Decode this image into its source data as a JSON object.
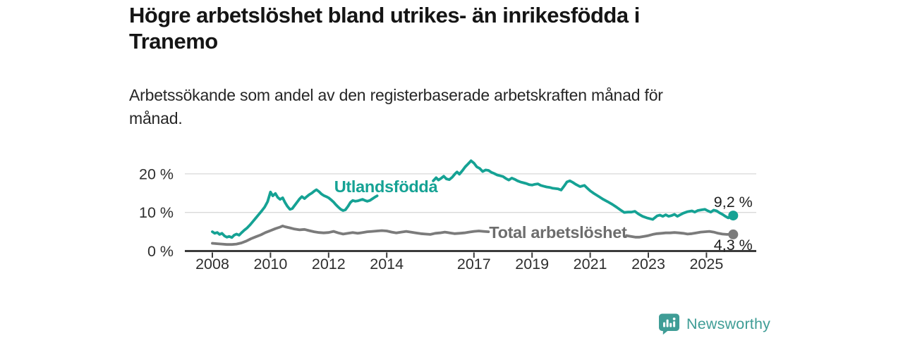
{
  "branding": {
    "name": "Newsworthy",
    "teal": "#3f9d96"
  },
  "colors": {
    "background": "#ffffff",
    "title_text": "#151515",
    "subtitle_text": "#262626",
    "grid": "#d9d9d9",
    "axis": "#3b3b3b",
    "tick_text": "#2e2e2e",
    "end_label_text": "#1f1f1f",
    "series_foreign": "#15a294",
    "series_total": "#7b7b7b"
  },
  "chart_data": {
    "type": "line",
    "title": "Högre arbetslöshet bland utrikes- än inrikesfödda i Tranemo",
    "subtitle": "Arbetssökande som andel av den registerbaserade arbetskraften månad för månad.",
    "unit": "%",
    "grid": "horizontal",
    "legend_position": "inline-labels",
    "x_range": [
      2007.05,
      2026.3
    ],
    "y_range": [
      0,
      25
    ],
    "x_ticks": [
      {
        "v": 2008,
        "label": "2008"
      },
      {
        "v": 2010,
        "label": "2010"
      },
      {
        "v": 2012,
        "label": "2012"
      },
      {
        "v": 2014,
        "label": "2014"
      },
      {
        "v": 2017,
        "label": "2017"
      },
      {
        "v": 2019,
        "label": "2019"
      },
      {
        "v": 2021,
        "label": "2021"
      },
      {
        "v": 2023,
        "label": "2023"
      },
      {
        "v": 2025,
        "label": "2025"
      }
    ],
    "y_ticks": [
      {
        "v": 0,
        "label": "0 %"
      },
      {
        "v": 10,
        "label": "10 %"
      },
      {
        "v": 20,
        "label": "20 %"
      }
    ],
    "series": [
      {
        "id": "utlandsfodda",
        "name": "Utlandsfödda",
        "color": "#15a294",
        "label_color": "#15a294",
        "label_at": [
          2013.97,
          16.7
        ],
        "end_label": "9,2 %",
        "end_label_side": "above",
        "points": [
          [
            2008.0,
            5.0
          ],
          [
            2008.08,
            4.6
          ],
          [
            2008.17,
            4.8
          ],
          [
            2008.25,
            4.3
          ],
          [
            2008.33,
            4.6
          ],
          [
            2008.42,
            3.9
          ],
          [
            2008.5,
            3.6
          ],
          [
            2008.58,
            3.8
          ],
          [
            2008.67,
            3.5
          ],
          [
            2008.75,
            4.1
          ],
          [
            2008.83,
            4.4
          ],
          [
            2008.92,
            4.1
          ],
          [
            2009.0,
            4.7
          ],
          [
            2009.1,
            5.4
          ],
          [
            2009.2,
            6.0
          ],
          [
            2009.3,
            6.8
          ],
          [
            2009.4,
            7.7
          ],
          [
            2009.5,
            8.6
          ],
          [
            2009.6,
            9.5
          ],
          [
            2009.7,
            10.4
          ],
          [
            2009.8,
            11.4
          ],
          [
            2009.9,
            12.8
          ],
          [
            2010.0,
            15.3
          ],
          [
            2010.08,
            14.3
          ],
          [
            2010.17,
            14.9
          ],
          [
            2010.25,
            13.9
          ],
          [
            2010.33,
            13.4
          ],
          [
            2010.42,
            13.8
          ],
          [
            2010.5,
            12.6
          ],
          [
            2010.58,
            11.6
          ],
          [
            2010.67,
            10.8
          ],
          [
            2010.75,
            11.0
          ],
          [
            2010.83,
            11.8
          ],
          [
            2010.92,
            12.7
          ],
          [
            2011.0,
            13.5
          ],
          [
            2011.08,
            14.1
          ],
          [
            2011.17,
            13.6
          ],
          [
            2011.25,
            14.1
          ],
          [
            2011.33,
            14.6
          ],
          [
            2011.42,
            15.0
          ],
          [
            2011.5,
            15.5
          ],
          [
            2011.58,
            15.9
          ],
          [
            2011.67,
            15.4
          ],
          [
            2011.75,
            14.8
          ],
          [
            2011.83,
            14.4
          ],
          [
            2011.92,
            14.1
          ],
          [
            2012.0,
            13.8
          ],
          [
            2012.08,
            13.3
          ],
          [
            2012.17,
            12.7
          ],
          [
            2012.25,
            12.0
          ],
          [
            2012.33,
            11.4
          ],
          [
            2012.42,
            10.8
          ],
          [
            2012.5,
            10.5
          ],
          [
            2012.58,
            10.7
          ],
          [
            2012.67,
            11.6
          ],
          [
            2012.75,
            12.6
          ],
          [
            2012.83,
            13.1
          ],
          [
            2012.92,
            12.9
          ],
          [
            2013.0,
            13.0
          ],
          [
            2013.08,
            13.2
          ],
          [
            2013.17,
            13.4
          ],
          [
            2013.25,
            13.1
          ],
          [
            2013.33,
            12.9
          ],
          [
            2013.42,
            13.1
          ],
          [
            2013.5,
            13.5
          ],
          [
            2013.58,
            13.9
          ],
          [
            2013.67,
            14.3
          ],
          null,
          [
            2015.6,
            18.2
          ],
          [
            2015.7,
            19.0
          ],
          [
            2015.78,
            18.4
          ],
          [
            2015.88,
            18.9
          ],
          [
            2015.96,
            19.4
          ],
          [
            2016.05,
            18.7
          ],
          [
            2016.15,
            18.5
          ],
          [
            2016.25,
            19.1
          ],
          [
            2016.35,
            20.0
          ],
          [
            2016.42,
            20.5
          ],
          [
            2016.5,
            19.9
          ],
          [
            2016.6,
            20.8
          ],
          [
            2016.7,
            21.8
          ],
          [
            2016.8,
            22.6
          ],
          [
            2016.9,
            23.4
          ],
          [
            2017.0,
            22.8
          ],
          [
            2017.1,
            21.8
          ],
          [
            2017.2,
            21.4
          ],
          [
            2017.3,
            20.6
          ],
          [
            2017.4,
            21.0
          ],
          [
            2017.5,
            20.9
          ],
          [
            2017.6,
            20.4
          ],
          [
            2017.7,
            20.1
          ],
          [
            2017.8,
            19.7
          ],
          [
            2017.9,
            19.5
          ],
          [
            2018.0,
            19.3
          ],
          [
            2018.1,
            18.8
          ],
          [
            2018.2,
            18.4
          ],
          [
            2018.3,
            18.9
          ],
          [
            2018.4,
            18.6
          ],
          [
            2018.5,
            18.2
          ],
          [
            2018.6,
            17.9
          ],
          [
            2018.7,
            17.7
          ],
          [
            2018.8,
            17.5
          ],
          [
            2018.9,
            17.2
          ],
          [
            2019.0,
            17.1
          ],
          [
            2019.1,
            17.3
          ],
          [
            2019.2,
            17.4
          ],
          [
            2019.3,
            17.0
          ],
          [
            2019.4,
            16.8
          ],
          [
            2019.5,
            16.6
          ],
          [
            2019.6,
            16.5
          ],
          [
            2019.7,
            16.3
          ],
          [
            2019.8,
            16.2
          ],
          [
            2019.9,
            16.1
          ],
          [
            2020.0,
            15.8
          ],
          [
            2020.1,
            16.8
          ],
          [
            2020.2,
            17.9
          ],
          [
            2020.3,
            18.2
          ],
          [
            2020.4,
            17.8
          ],
          [
            2020.5,
            17.3
          ],
          [
            2020.65,
            16.7
          ],
          [
            2020.8,
            17.0
          ],
          [
            2020.9,
            16.3
          ],
          [
            2021.0,
            15.6
          ],
          [
            2021.13,
            14.9
          ],
          [
            2021.3,
            14.1
          ],
          [
            2021.45,
            13.4
          ],
          [
            2021.6,
            12.8
          ],
          [
            2021.76,
            12.1
          ],
          [
            2021.9,
            11.4
          ],
          [
            2022.05,
            10.6
          ],
          [
            2022.17,
            10.0
          ],
          [
            2022.3,
            10.1
          ],
          [
            2022.42,
            10.1
          ],
          [
            2022.54,
            10.3
          ],
          [
            2022.66,
            9.6
          ],
          [
            2022.8,
            9.0
          ],
          [
            2022.95,
            8.6
          ],
          [
            2023.15,
            8.2
          ],
          [
            2023.3,
            9.1
          ],
          [
            2023.4,
            9.3
          ],
          [
            2023.5,
            9.0
          ],
          [
            2023.6,
            9.4
          ],
          [
            2023.7,
            9.0
          ],
          [
            2023.8,
            9.2
          ],
          [
            2023.9,
            9.5
          ],
          [
            2024.0,
            9.0
          ],
          [
            2024.1,
            9.4
          ],
          [
            2024.2,
            9.8
          ],
          [
            2024.35,
            10.2
          ],
          [
            2024.5,
            10.4
          ],
          [
            2024.6,
            10.1
          ],
          [
            2024.7,
            10.5
          ],
          [
            2024.85,
            10.7
          ],
          [
            2024.95,
            10.8
          ],
          [
            2025.05,
            10.4
          ],
          [
            2025.15,
            10.1
          ],
          [
            2025.25,
            10.6
          ],
          [
            2025.35,
            10.4
          ],
          [
            2025.45,
            9.9
          ],
          [
            2025.55,
            9.5
          ],
          [
            2025.65,
            9.0
          ],
          [
            2025.75,
            8.6
          ],
          [
            2025.85,
            9.0
          ],
          [
            2025.92,
            9.2
          ]
        ]
      },
      {
        "id": "total",
        "name": "Total arbetslöshet",
        "color": "#7b7b7b",
        "label_color": "#6d6d6d",
        "label_at": [
          2019.89,
          4.85
        ],
        "end_label": "4,3 %",
        "end_label_side": "below",
        "points": [
          [
            2008.0,
            2.0
          ],
          [
            2008.17,
            1.9
          ],
          [
            2008.33,
            1.8
          ],
          [
            2008.5,
            1.7
          ],
          [
            2008.67,
            1.7
          ],
          [
            2008.83,
            1.8
          ],
          [
            2009.0,
            2.1
          ],
          [
            2009.17,
            2.6
          ],
          [
            2009.33,
            3.2
          ],
          [
            2009.5,
            3.7
          ],
          [
            2009.67,
            4.2
          ],
          [
            2009.83,
            4.8
          ],
          [
            2010.0,
            5.3
          ],
          [
            2010.17,
            5.8
          ],
          [
            2010.33,
            6.2
          ],
          [
            2010.42,
            6.5
          ],
          [
            2010.5,
            6.3
          ],
          [
            2010.67,
            6.0
          ],
          [
            2010.83,
            5.7
          ],
          [
            2011.0,
            5.5
          ],
          [
            2011.17,
            5.6
          ],
          [
            2011.33,
            5.3
          ],
          [
            2011.5,
            5.0
          ],
          [
            2011.67,
            4.8
          ],
          [
            2011.83,
            4.7
          ],
          [
            2012.0,
            4.8
          ],
          [
            2012.17,
            5.1
          ],
          [
            2012.33,
            4.7
          ],
          [
            2012.5,
            4.4
          ],
          [
            2012.67,
            4.6
          ],
          [
            2012.83,
            4.8
          ],
          [
            2013.0,
            4.6
          ],
          [
            2013.17,
            4.8
          ],
          [
            2013.33,
            5.0
          ],
          [
            2013.5,
            5.1
          ],
          [
            2013.67,
            5.2
          ],
          [
            2013.83,
            5.3
          ],
          [
            2014.0,
            5.2
          ],
          [
            2014.17,
            4.9
          ],
          [
            2014.33,
            4.7
          ],
          [
            2014.5,
            4.9
          ],
          [
            2014.67,
            5.1
          ],
          [
            2014.83,
            4.9
          ],
          [
            2015.0,
            4.7
          ],
          [
            2015.17,
            4.5
          ],
          [
            2015.33,
            4.4
          ],
          [
            2015.5,
            4.3
          ],
          [
            2015.67,
            4.6
          ],
          [
            2015.83,
            4.7
          ],
          [
            2016.0,
            4.9
          ],
          [
            2016.17,
            4.7
          ],
          [
            2016.33,
            4.5
          ],
          [
            2016.5,
            4.6
          ],
          [
            2016.67,
            4.7
          ],
          [
            2016.83,
            4.9
          ],
          [
            2017.0,
            5.1
          ],
          [
            2017.17,
            5.2
          ],
          [
            2017.33,
            5.1
          ],
          [
            2017.5,
            5.0
          ],
          null,
          [
            2022.25,
            4.0
          ],
          [
            2022.4,
            3.8
          ],
          [
            2022.55,
            3.6
          ],
          [
            2022.7,
            3.6
          ],
          [
            2022.85,
            3.8
          ],
          [
            2023.0,
            4.0
          ],
          [
            2023.15,
            4.3
          ],
          [
            2023.3,
            4.5
          ],
          [
            2023.45,
            4.6
          ],
          [
            2023.6,
            4.7
          ],
          [
            2023.75,
            4.7
          ],
          [
            2023.9,
            4.8
          ],
          [
            2024.05,
            4.7
          ],
          [
            2024.2,
            4.6
          ],
          [
            2024.35,
            4.4
          ],
          [
            2024.5,
            4.5
          ],
          [
            2024.65,
            4.7
          ],
          [
            2024.8,
            4.9
          ],
          [
            2024.95,
            5.0
          ],
          [
            2025.1,
            5.1
          ],
          [
            2025.25,
            4.9
          ],
          [
            2025.4,
            4.6
          ],
          [
            2025.55,
            4.4
          ],
          [
            2025.7,
            4.3
          ],
          [
            2025.8,
            4.3
          ],
          [
            2025.92,
            4.3
          ]
        ]
      }
    ]
  }
}
